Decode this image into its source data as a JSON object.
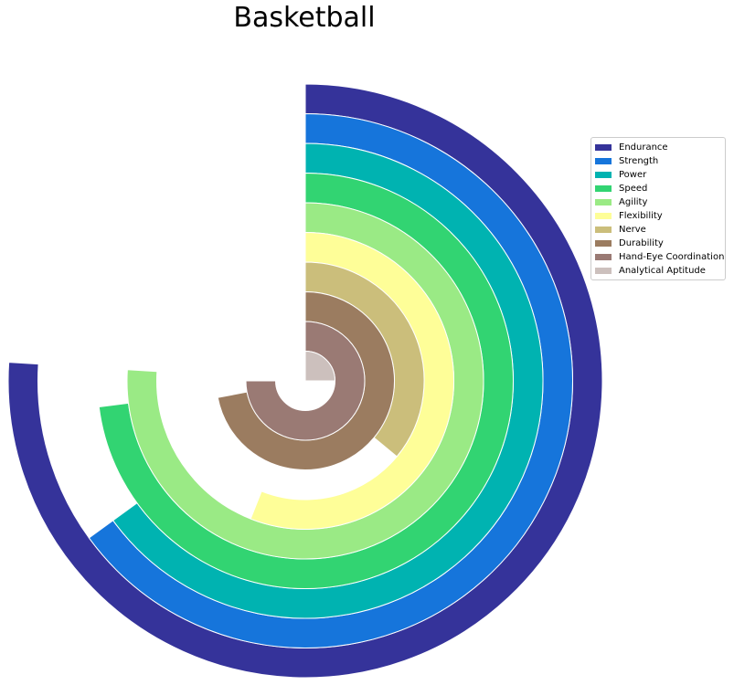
{
  "chart_data": {
    "type": "radial-bar",
    "title": "Basketball",
    "max_value": 100,
    "categories": [
      "Endurance",
      "Strength",
      "Power",
      "Speed",
      "Agility",
      "Flexibility",
      "Nerve",
      "Durability",
      "Hand-Eye Coordination",
      "Analytical Aptitude"
    ],
    "values": [
      76,
      65,
      65,
      73,
      76,
      56,
      36,
      72,
      75,
      25
    ],
    "colors": [
      "#35339a",
      "#1675db",
      "#00b3b1",
      "#32d472",
      "#9aea85",
      "#fefe98",
      "#cbbe7b",
      "#9b7c60",
      "#9a7a74",
      "#ccc0bd"
    ],
    "legend_position": "upper right",
    "start_angle": "top",
    "direction": "clockwise"
  }
}
